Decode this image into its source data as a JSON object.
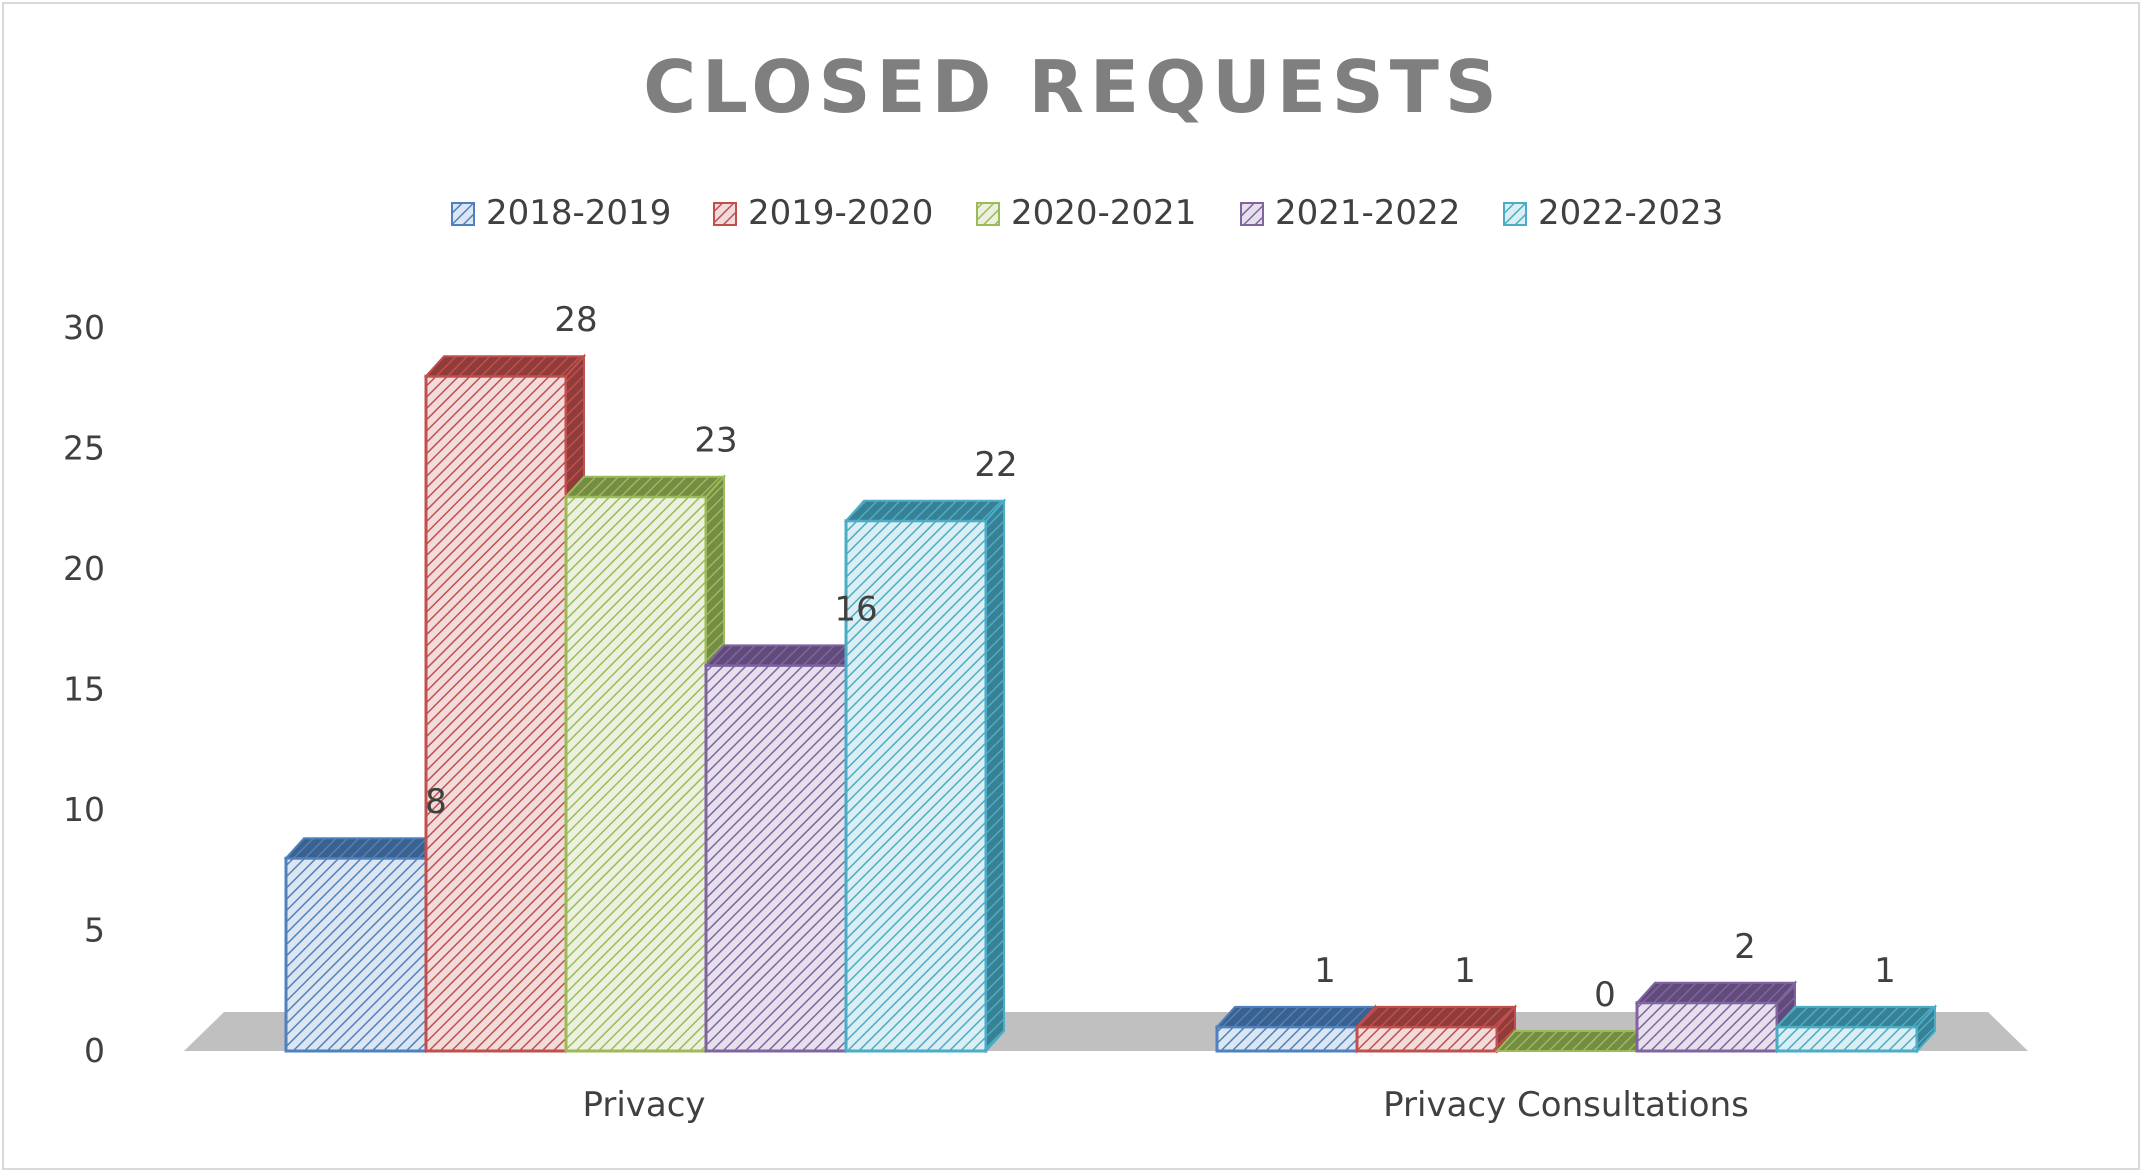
{
  "chart_data": {
    "type": "bar",
    "title": "CLOSED REQUESTS",
    "categories": [
      "Privacy",
      "Privacy Consultations"
    ],
    "series": [
      {
        "name": "2018-2019",
        "values": [
          8,
          1
        ],
        "color": "#4f81bd",
        "fill": "#dce6f2"
      },
      {
        "name": "2019-2020",
        "values": [
          28,
          1
        ],
        "color": "#c0504d",
        "fill": "#f2dcdb"
      },
      {
        "name": "2020-2021",
        "values": [
          23,
          0
        ],
        "color": "#9bbb59",
        "fill": "#ebf1de"
      },
      {
        "name": "2021-2022",
        "values": [
          16,
          2
        ],
        "color": "#8064a2",
        "fill": "#e6e0ec"
      },
      {
        "name": "2022-2023",
        "values": [
          22,
          1
        ],
        "color": "#4bacc6",
        "fill": "#dbeef4"
      }
    ],
    "ylim": [
      0,
      30
    ],
    "yticks": [
      0,
      5,
      10,
      15,
      20,
      25,
      30
    ],
    "xlabel": "",
    "ylabel": "",
    "legend": "top",
    "grid": false,
    "style": "3d-clustered-column"
  }
}
